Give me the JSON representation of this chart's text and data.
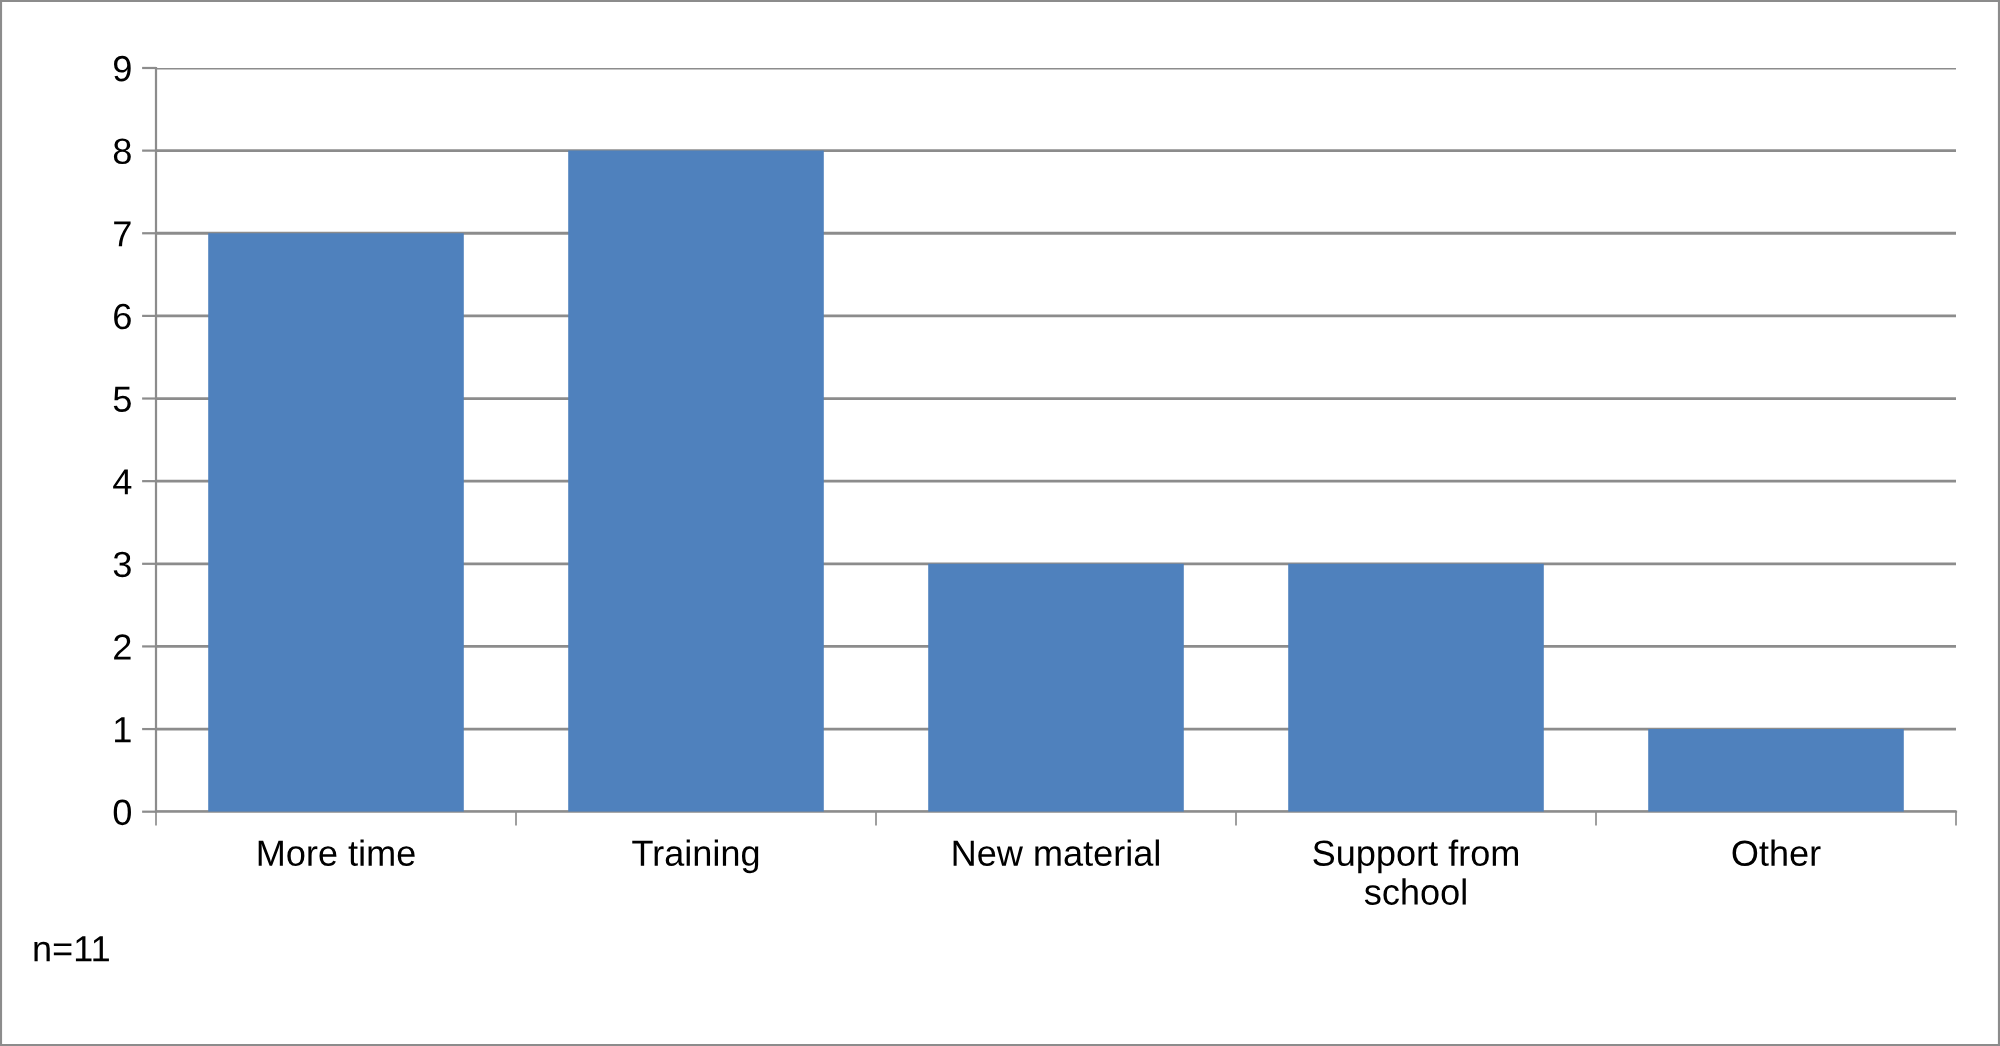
{
  "chart_data": {
    "type": "bar",
    "categories": [
      "More time",
      "Training",
      "New material",
      "Support from\nschool",
      "Other"
    ],
    "values": [
      7,
      8,
      3,
      3,
      1
    ],
    "color": "#4f81bd",
    "ylim": [
      0,
      9
    ],
    "yticks": [
      0,
      1,
      2,
      3,
      4,
      5,
      6,
      7,
      8,
      9
    ],
    "grid": "y",
    "legend": false,
    "annotations": [
      "n=11"
    ]
  }
}
